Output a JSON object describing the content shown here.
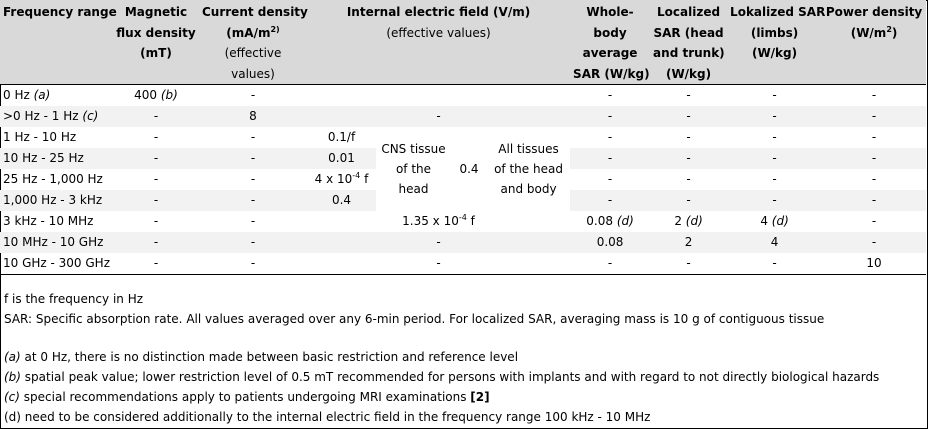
{
  "header": {
    "frequency": "Frequency range",
    "magnetic": [
      "Magnetic",
      "flux density",
      "(mT)"
    ],
    "current": [
      "Current density",
      "(mA/m",
      "2)",
      "(effective",
      "values)"
    ],
    "efield_title": "Internal electric field (V/m)",
    "efield_sub": "(effective values)",
    "wholebody": [
      "Whole-",
      "body",
      "average",
      "SAR (W/kg)"
    ],
    "localized": [
      "Localized",
      "SAR (head",
      "and trunk)",
      "(W/kg)"
    ],
    "limbs": [
      "Lokalized SAR",
      "(limbs)",
      "(W/kg)"
    ],
    "power": [
      "Power density",
      "(W/m",
      "2",
      ")"
    ]
  },
  "rows": [
    {
      "freq": "0 Hz",
      "note": "(a)",
      "mag": "400",
      "mag_note": "(b)",
      "cur": "-",
      "wb": "-",
      "loc": "-",
      "limb": "-",
      "pd": "-"
    },
    {
      "freq": ">0 Hz - 1 Hz",
      "note": "(c)",
      "mag": "-",
      "cur": "8",
      "ef": "-",
      "wb": "-",
      "loc": "-",
      "limb": "-",
      "pd": "-"
    },
    {
      "freq": "1 Hz - 10 Hz",
      "mag": "-",
      "cur": "-",
      "ef": "0.1/f",
      "wb": "-",
      "loc": "-",
      "limb": "-",
      "pd": "-"
    },
    {
      "freq": "10 Hz - 25 Hz",
      "mag": "-",
      "cur": "-",
      "ef": "0.01",
      "wb": "-",
      "loc": "-",
      "limb": "-",
      "pd": "-"
    },
    {
      "freq": "25 Hz - 1,000 Hz",
      "mag": "-",
      "cur": "-",
      "ef_a": "4 x 10",
      "ef_exp": "-4",
      "ef_b": " f",
      "wb": "-",
      "loc": "-",
      "limb": "-",
      "pd": "-"
    },
    {
      "freq": "1,000 Hz - 3 kHz",
      "mag": "-",
      "cur": "-",
      "ef": "0.4",
      "wb": "-",
      "loc": "-",
      "limb": "-",
      "pd": "-"
    },
    {
      "freq": "3 kHz - 10 MHz",
      "mag": "-",
      "cur": "-",
      "ef_a": "1.35 x 10",
      "ef_exp": "-4",
      "ef_b": " f",
      "wb": "0.08",
      "wb_note": "(d)",
      "loc": "2",
      "loc_note": "(d)",
      "limb": "4",
      "limb_note": "(d)",
      "pd": "-"
    },
    {
      "freq": "10 MHz - 10 GHz",
      "mag": "-",
      "cur": "-",
      "ef": "-",
      "wb": "0.08",
      "loc": "2",
      "limb": "4",
      "pd": "-"
    },
    {
      "freq": "10 GHz - 300 GHz",
      "mag": "-",
      "cur": "-",
      "ef": "-",
      "wb": "-",
      "loc": "-",
      "limb": "-",
      "pd": "10"
    }
  ],
  "cns": [
    "CNS tissue",
    "of the",
    "head"
  ],
  "cns_value": "0.4",
  "all_tissues": [
    "All tissues",
    "of the head",
    "and body"
  ],
  "notes": {
    "f_line": "f is the frequency in Hz",
    "sar_line": "SAR: Specific absorption rate. All values averaged over any 6-min period. For localized SAR, averaging mass is 10 g of contiguous tissue",
    "a_prefix": "(a)",
    "a_text": " at 0 Hz, there is no distinction made between basic restriction and reference level",
    "b_prefix": "(b)",
    "b_text": " spatial peak value; lower restriction level of 0.5 mT recommended for persons with implants and with regard to not directly biological hazards",
    "c_prefix": "(c)",
    "c_text": " special recommendations apply to patients undergoing MRI examinations ",
    "c_ref": "[2]",
    "d_text": "(d) need to be considered additionally to the internal electric field in the frequency range 100 kHz - 10 MHz"
  }
}
